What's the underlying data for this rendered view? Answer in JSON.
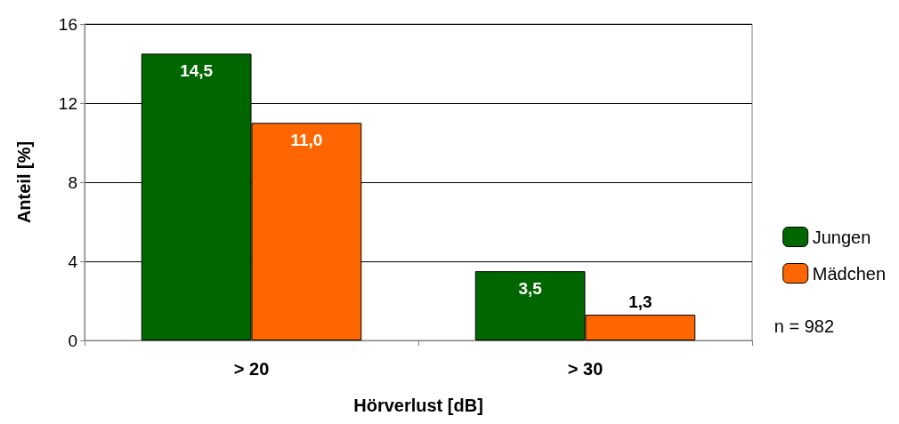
{
  "chart_data": {
    "type": "bar",
    "xlabel": "Hörverlust [dB]",
    "ylabel": "Anteil [%]",
    "categories": [
      "> 20",
      "> 30"
    ],
    "series": [
      {
        "name": "Jungen",
        "color": "#006600",
        "values": [
          14.5,
          3.5
        ],
        "value_labels": [
          "14,5",
          "3,5"
        ]
      },
      {
        "name": "Mädchen",
        "color": "#ff6600",
        "values": [
          11.0,
          1.3
        ],
        "value_labels": [
          "11,0",
          "1,3"
        ]
      }
    ],
    "ylim": [
      0,
      16
    ],
    "yticks": [
      0,
      4,
      8,
      12,
      16
    ],
    "grid": "y",
    "legend": "right",
    "annotations": [
      "n = 982"
    ]
  }
}
